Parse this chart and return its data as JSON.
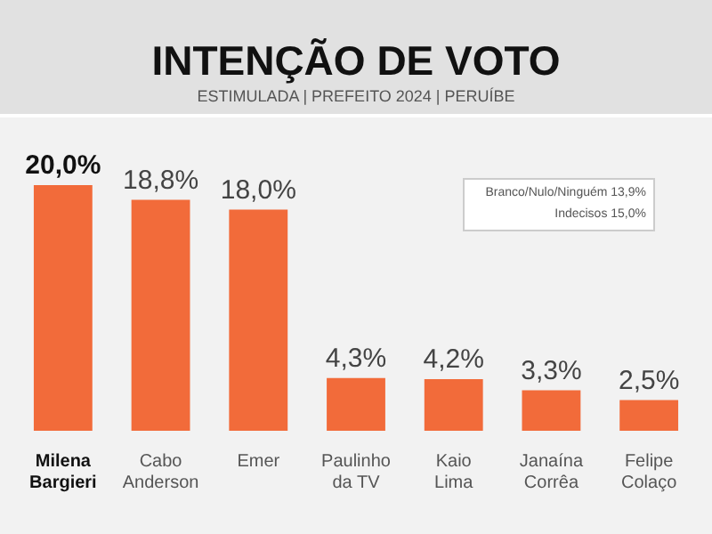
{
  "chart_data": {
    "type": "bar",
    "title": "INTENÇÃO DE VOTO",
    "subtitle": "ESTIMULADA | PREFEITO 2024 | PERUÍBE",
    "categories": [
      "Milena Bargieri",
      "Cabo Anderson",
      "Emer",
      "Paulinho da TV",
      "Kaio Lima",
      "Janaína Corrêa",
      "Felipe Colaço"
    ],
    "values": [
      20.0,
      18.8,
      18.0,
      4.3,
      4.2,
      3.3,
      2.5
    ],
    "value_labels": [
      "20,0%",
      "18,8%",
      "18,0%",
      "4,3%",
      "4,2%",
      "3,3%",
      "2,5%"
    ],
    "color": "#f26b3a",
    "annotations": [
      "Branco/Nulo/Ninguém 13,9%",
      "Indecisos 15,0%"
    ]
  }
}
